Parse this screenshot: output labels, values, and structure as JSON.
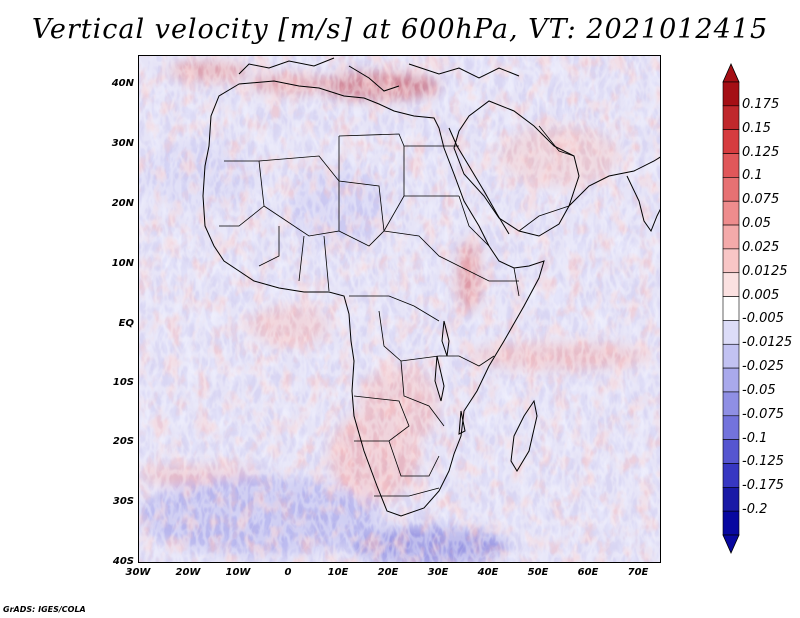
{
  "title": "Vertical velocity [m/s] at 600hPa, VT: 2021012415",
  "footer": "GrADS: IGES/COLA",
  "map": {
    "region": "Africa",
    "variable": "Vertical velocity",
    "units": "m/s",
    "level": "600hPa",
    "valid_time": "2021012415",
    "lat_labels": [
      "40N",
      "30N",
      "20N",
      "10N",
      "EQ",
      "10S",
      "20S",
      "30S",
      "40S"
    ],
    "lon_labels": [
      "30W",
      "20W",
      "10W",
      "0",
      "10E",
      "20E",
      "30E",
      "40E",
      "50E",
      "60E",
      "70E"
    ]
  },
  "colorbar": {
    "labels": [
      "0.175",
      "0.15",
      "0.125",
      "0.1",
      "0.075",
      "0.05",
      "0.025",
      "0.0125",
      "0.005",
      "-0.005",
      "-0.0125",
      "-0.025",
      "-0.05",
      "-0.075",
      "-0.1",
      "-0.125",
      "-0.175",
      "-0.2"
    ],
    "colors": [
      "#a50f15",
      "#c0282c",
      "#d63c3f",
      "#e0575a",
      "#e77173",
      "#ee8c8d",
      "#f4aaaa",
      "#f8c6c6",
      "#fbe1e1",
      "#ffffff",
      "#dcdcf8",
      "#c2c2f2",
      "#a9a9ec",
      "#8f8fe4",
      "#7373dc",
      "#5656d0",
      "#3737c2",
      "#1a1aa6",
      "#0808a0"
    ]
  }
}
